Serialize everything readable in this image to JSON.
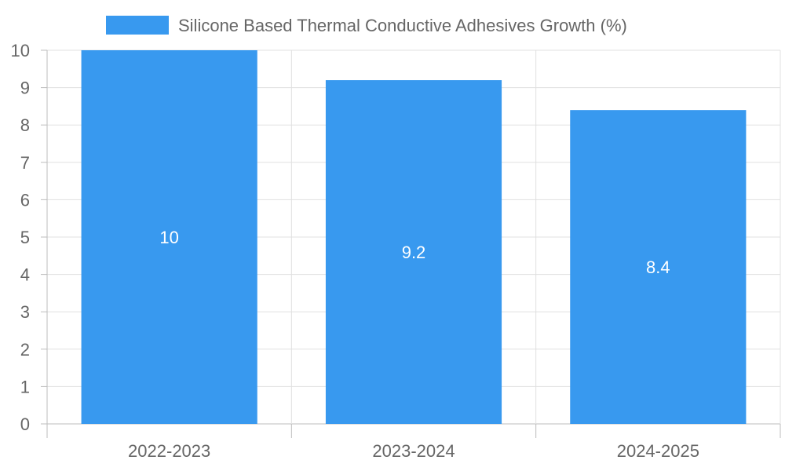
{
  "chart_data": {
    "type": "bar",
    "title": "",
    "categories": [
      "2022-2023",
      "2023-2024",
      "2024-2025"
    ],
    "series": [
      {
        "name": "Silicone Based Thermal Conductive Adhesives Growth (%)",
        "values": [
          10,
          9.2,
          8.4
        ],
        "color": "#3899ef"
      }
    ],
    "data_labels": [
      "10",
      "9.2",
      "8.4"
    ],
    "xlabel": "",
    "ylabel": "",
    "ylim": [
      0,
      10
    ],
    "yticks": [
      "0",
      "1",
      "2",
      "3",
      "4",
      "5",
      "6",
      "7",
      "8",
      "9",
      "10"
    ],
    "grid": true,
    "legend_position": "top-center"
  },
  "colors": {
    "grid": "#e0e0e0",
    "axis": "#bdbdbd",
    "text": "#666666"
  }
}
